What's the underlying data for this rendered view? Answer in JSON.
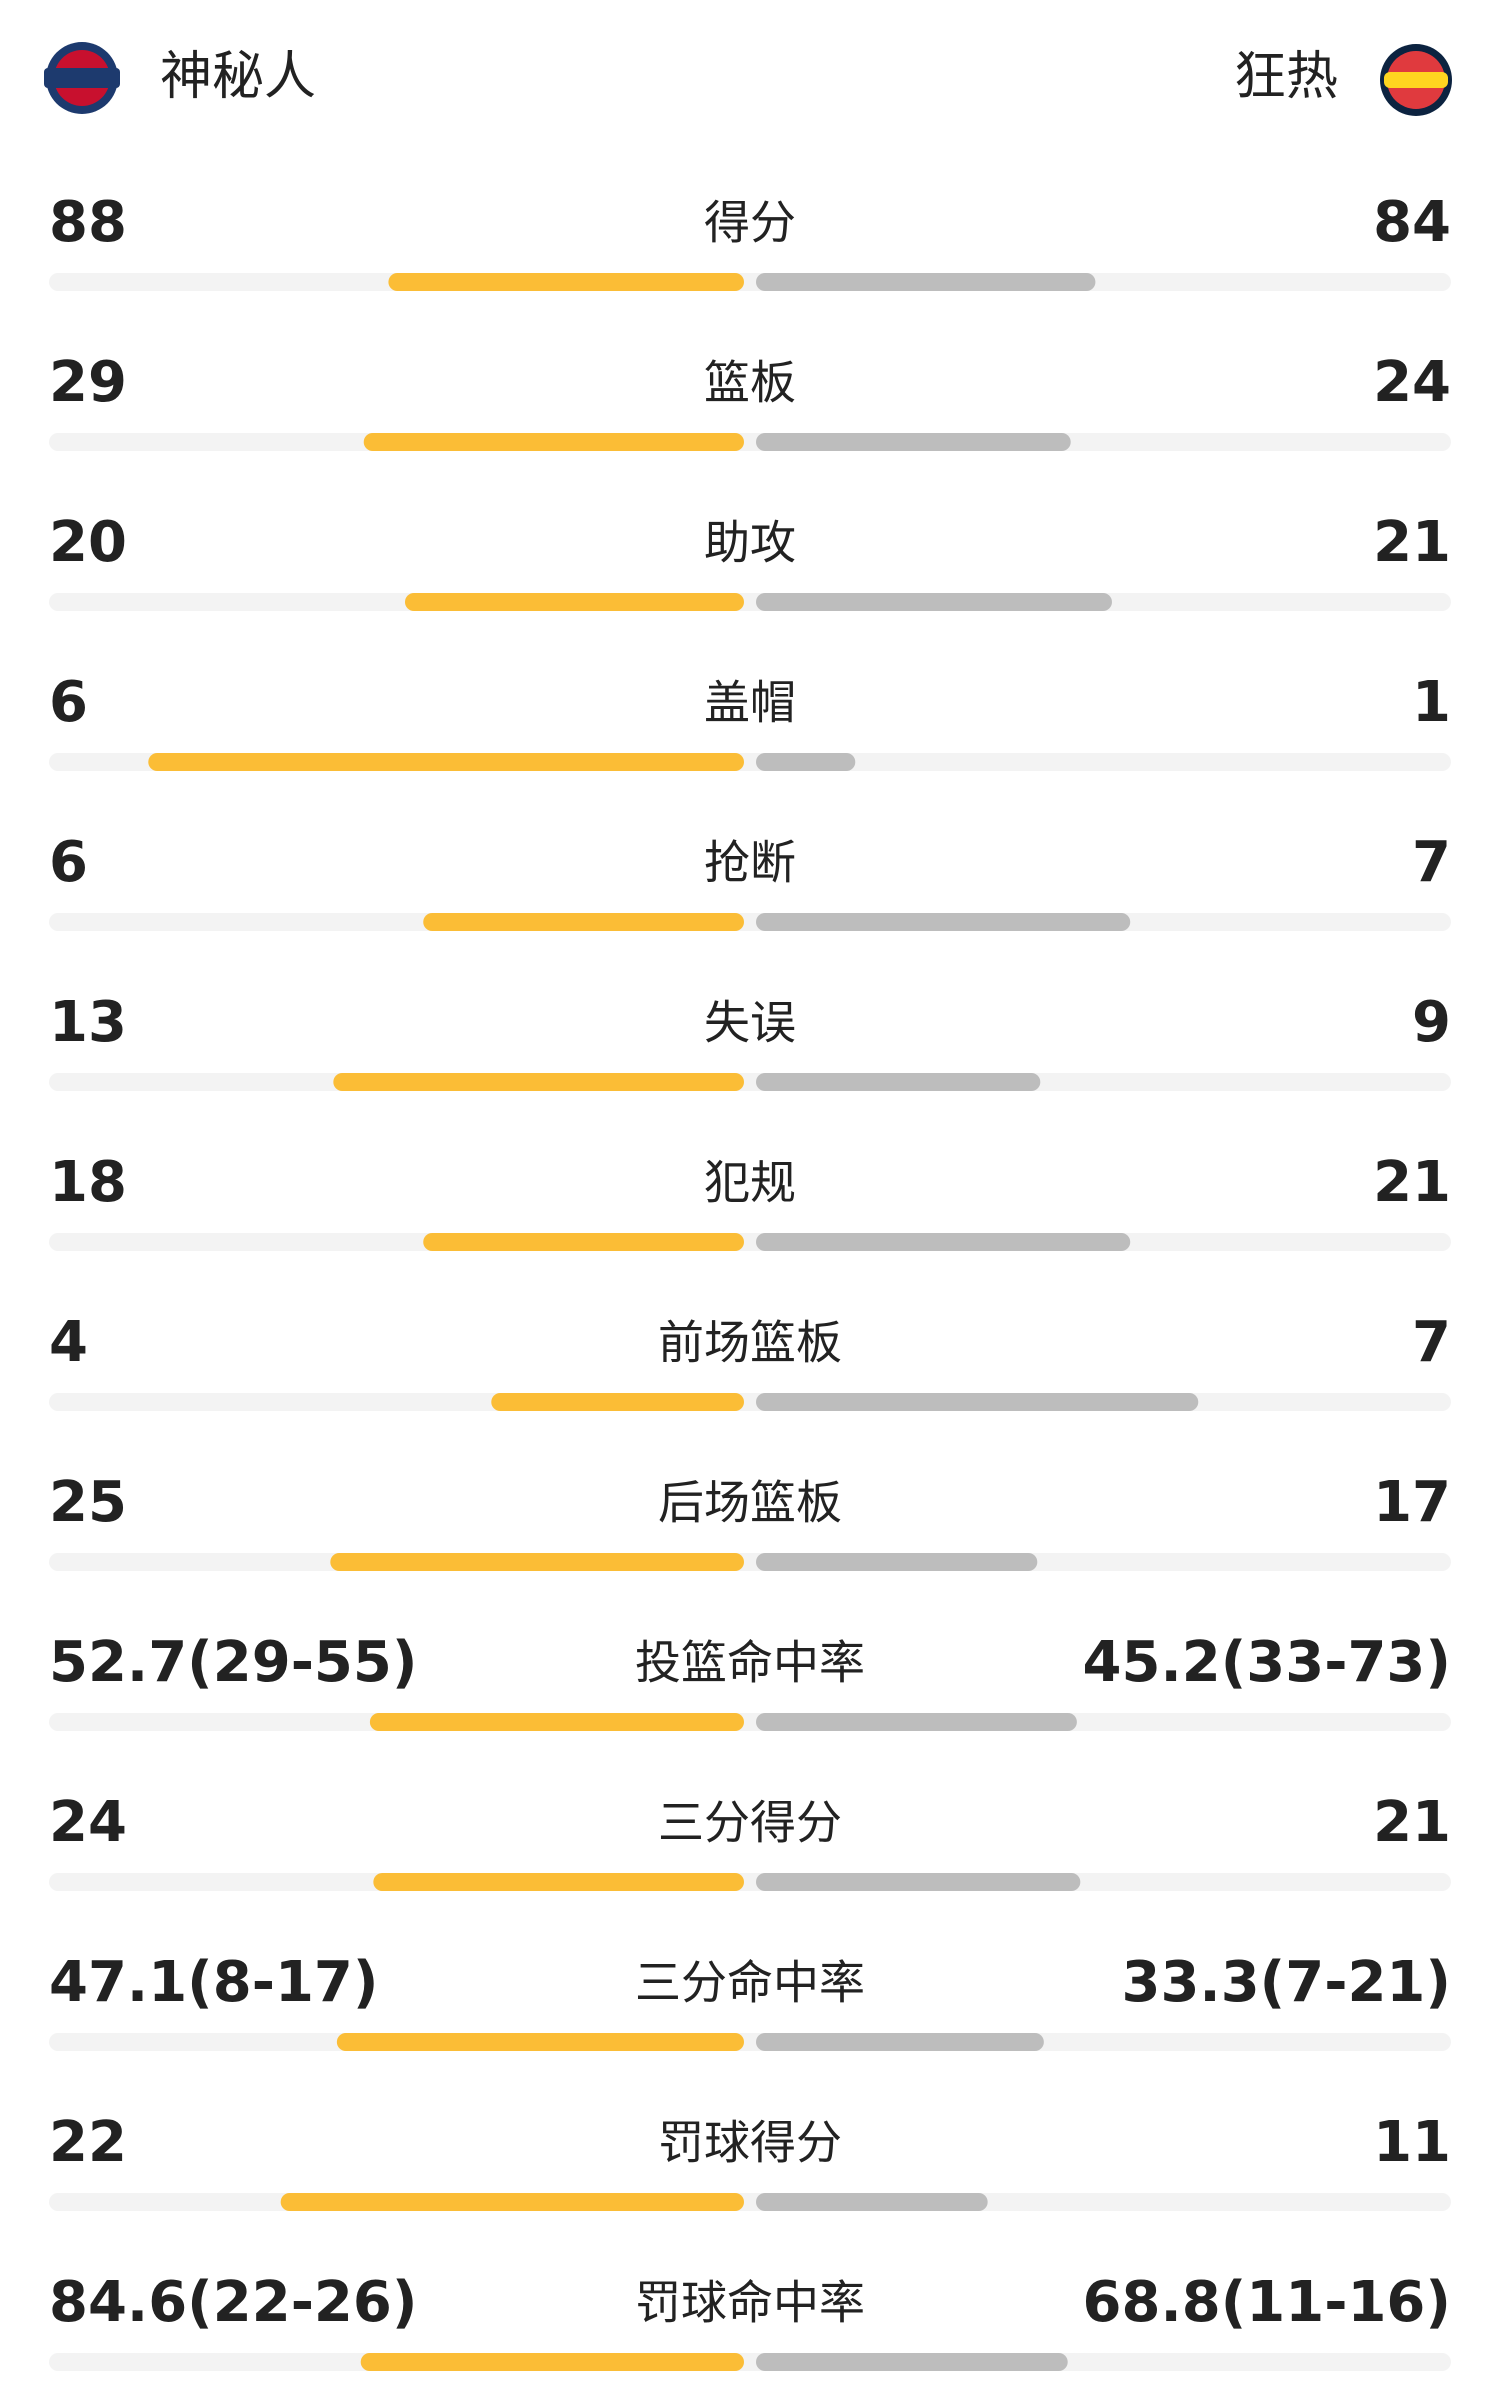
{
  "header": {
    "home": "神秘人",
    "away": "狂热"
  },
  "stats": [
    {
      "label": "得分",
      "home": 88,
      "away": 84
    },
    {
      "label": "篮板",
      "home": 29,
      "away": 24
    },
    {
      "label": "助攻",
      "home": 20,
      "away": 21
    },
    {
      "label": "盖帽",
      "home": 6,
      "away": 1
    },
    {
      "label": "抢断",
      "home": 6,
      "away": 7
    },
    {
      "label": "失误",
      "home": 13,
      "away": 9
    },
    {
      "label": "犯规",
      "home": 18,
      "away": 21
    },
    {
      "label": "前场篮板",
      "home": 4,
      "away": 7
    },
    {
      "label": "后场篮板",
      "home": 25,
      "away": 17
    },
    {
      "label": "投篮命中率",
      "home": 52.7,
      "home_label": "52.7(29-55)",
      "away": 45.2,
      "away_label": "45.2(33-73)"
    },
    {
      "label": "三分得分",
      "home": 24,
      "away": 21
    },
    {
      "label": "三分命中率",
      "home": 47.1,
      "home_label": "47.1(8-17)",
      "away": 33.3,
      "away_label": "33.3(7-21)"
    },
    {
      "label": "罚球得分",
      "home": 22,
      "away": 11
    },
    {
      "label": "罚球命中率",
      "home": 84.6,
      "home_label": "84.6(22-26)",
      "away": 68.8,
      "away_label": "68.8(11-16)"
    }
  ]
}
